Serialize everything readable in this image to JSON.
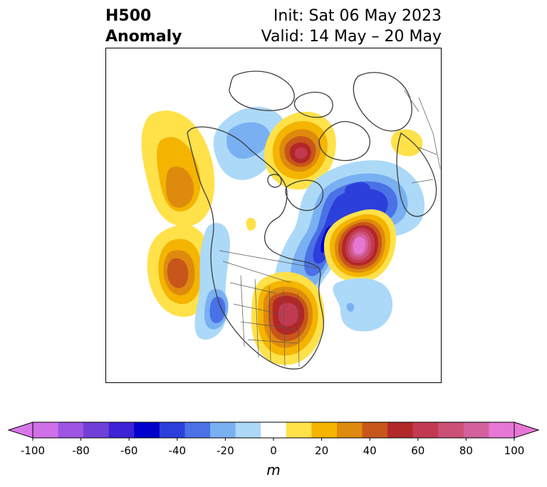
{
  "title": {
    "left_line1": "H500",
    "left_line2": "Anomaly",
    "right_line1": "Init: Sat 06 May 2023",
    "right_line2": "Valid: 14 May – 20 May"
  },
  "colorbar": {
    "ticks": [
      "-100",
      "-80",
      "-60",
      "-40",
      "-20",
      "0",
      "20",
      "40",
      "60",
      "80",
      "100"
    ],
    "unit": "m",
    "extend": "both",
    "colors": [
      "#d070e8",
      "#9d55e2",
      "#6f3fd8",
      "#3d22d6",
      "#0000cc",
      "#2d3fdb",
      "#4a72e6",
      "#79b0f2",
      "#acd9f8",
      "#ffffff",
      "#ffe14a",
      "#f4b400",
      "#de8a0e",
      "#c8561a",
      "#b22727",
      "#c23a52",
      "#ca5076",
      "#d4609e",
      "#e777d4"
    ],
    "under_color": "#d977ea",
    "over_color": "#e777d4"
  },
  "map": {
    "projection": "north-polar-stereographic",
    "region": "North America",
    "anomalies": [
      {
        "name": "ridge-north-pacific",
        "center_deg": "east of Kamchatka",
        "max_m": 40
      },
      {
        "name": "ridge-gulf-of-alaska",
        "max_m": 50
      },
      {
        "name": "trough-alaska",
        "min_m": -30
      },
      {
        "name": "ridge-greenland",
        "max_m": 60
      },
      {
        "name": "trough-canadian-arctic-scandinavia",
        "min_m": -60
      },
      {
        "name": "ridge-north-atlantic",
        "max_m": 100
      },
      {
        "name": "ridge-eastern-us",
        "max_m": 70
      },
      {
        "name": "trough-western-us",
        "min_m": -40
      }
    ]
  }
}
